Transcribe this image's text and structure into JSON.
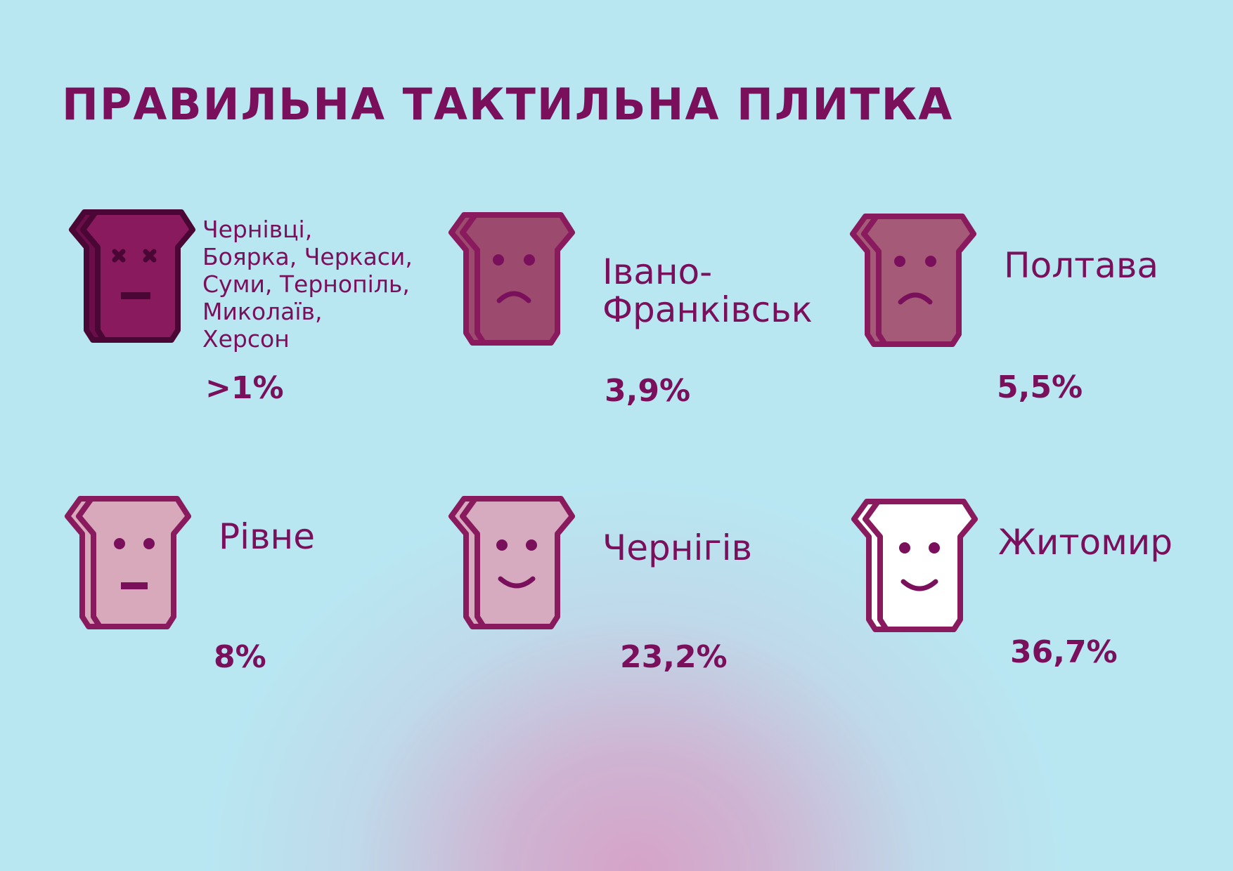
{
  "title": "ПРАВИЛЬНА ТАКТИЛЬНА ПЛИТКА",
  "items": [
    {
      "cities": [
        "Чернівці,",
        "Боярка, Черкаси,",
        "Суми, Тернопіль,",
        "Миколаїв,",
        "Херсон"
      ],
      "value": ">1%",
      "face": "dead-face-icon",
      "tile_color": "#8a1a5e"
    },
    {
      "cities": [
        "Івано-",
        "Франківськ"
      ],
      "value": "3,9%",
      "face": "sad-face-icon",
      "tile_color": "#9c4a6e"
    },
    {
      "cities": [
        "Полтава"
      ],
      "value": "5,5%",
      "face": "sad-face-icon",
      "tile_color": "#a55a78"
    },
    {
      "cities": [
        "Рівне"
      ],
      "value": "8%",
      "face": "neutral-face-icon",
      "tile_color": "#d8a9bb"
    },
    {
      "cities": [
        "Чернігів"
      ],
      "value": "23,2%",
      "face": "smile-face-icon",
      "tile_color": "#d6abbf"
    },
    {
      "cities": [
        "Житомир"
      ],
      "value": "36,7%",
      "face": "smile-face-icon",
      "tile_color": "#ffffff"
    }
  ],
  "colors": {
    "ink": "#7a0f5c",
    "background": "#b8e7f2",
    "glow": "#d6a3c8"
  }
}
